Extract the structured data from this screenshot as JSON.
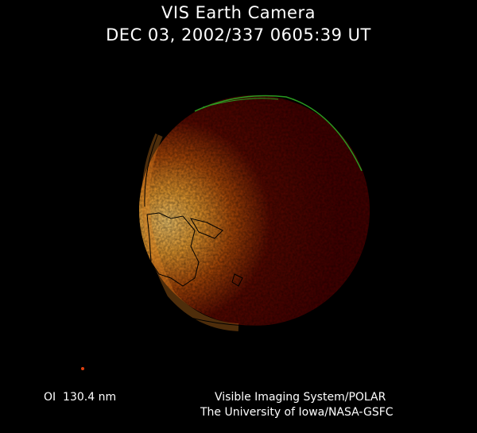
{
  "header": {
    "title": "VIS Earth Camera",
    "timestamp": "DEC 03, 2002/337 0605:39 UT"
  },
  "footer": {
    "filter": "OI  130.4 nm",
    "credit_line1": "Visible Imaging System/POLAR",
    "credit_line2": "The University of Iowa/NASA-GSFC"
  },
  "colors": {
    "background": "#000000",
    "disk": "#4a0000",
    "glow": "#f0a030",
    "aurora": "#2a9a20",
    "coastline": "#000000"
  }
}
